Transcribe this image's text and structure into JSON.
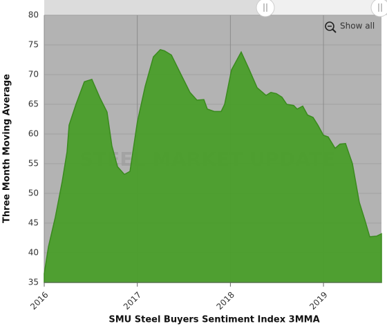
{
  "chart_data": {
    "type": "area",
    "title": "SMU Steel Buyers Sentiment Index 3MMA",
    "y_label": "Three Month Moving Average",
    "watermark": "STEEL MARKET UPDATE",
    "button": "Show all",
    "x": [
      2016.0,
      2016.045,
      2016.119,
      2016.193,
      2016.245,
      2016.267,
      2016.341,
      2016.431,
      2016.512,
      2016.601,
      2016.675,
      2016.727,
      2016.787,
      2016.861,
      2016.921,
      2017.0,
      2017.084,
      2017.173,
      2017.247,
      2017.292,
      2017.366,
      2017.47,
      2017.566,
      2017.641,
      2017.715,
      2017.752,
      2017.826,
      2017.901,
      2017.938,
      2018.012,
      2018.116,
      2018.198,
      2018.287,
      2018.331,
      2018.383,
      2018.435,
      2018.494,
      2018.554,
      2018.606,
      2018.68,
      2018.717,
      2018.777,
      2018.829,
      2018.888,
      2018.94,
      2018.999,
      2019.051,
      2019.125,
      2019.177,
      2019.237,
      2019.311,
      2019.385,
      2019.445,
      2019.497,
      2019.571,
      2019.623
    ],
    "series": [
      {
        "name": "SMU Steel Buyers Sentiment Index 3MMA",
        "color": "#4a9e2a",
        "values": [
          36.5,
          41,
          46,
          52,
          57,
          61.5,
          65,
          68.8,
          69.2,
          66,
          63.7,
          58,
          54.5,
          53.2,
          53.7,
          62,
          68,
          73,
          74.2,
          74,
          73.3,
          70,
          67,
          65.7,
          65.8,
          64.2,
          63.8,
          63.8,
          65,
          70.8,
          73.8,
          71,
          67.8,
          67.2,
          66.5,
          67,
          66.8,
          66.2,
          65,
          64.8,
          64.2,
          64.7,
          63.2,
          62.8,
          61.5,
          59.8,
          59.5,
          57.6,
          58.3,
          58.4,
          55,
          48.5,
          45.5,
          42.7,
          42.8,
          43.2
        ]
      }
    ],
    "xlim": [
      2016.0,
      2019.623
    ],
    "xticks": [
      2016,
      2017,
      2018,
      2019
    ],
    "ylim": [
      35,
      80
    ],
    "yticks": [
      35,
      40,
      45,
      50,
      55,
      60,
      65,
      70,
      75,
      80
    ],
    "grid": true
  }
}
